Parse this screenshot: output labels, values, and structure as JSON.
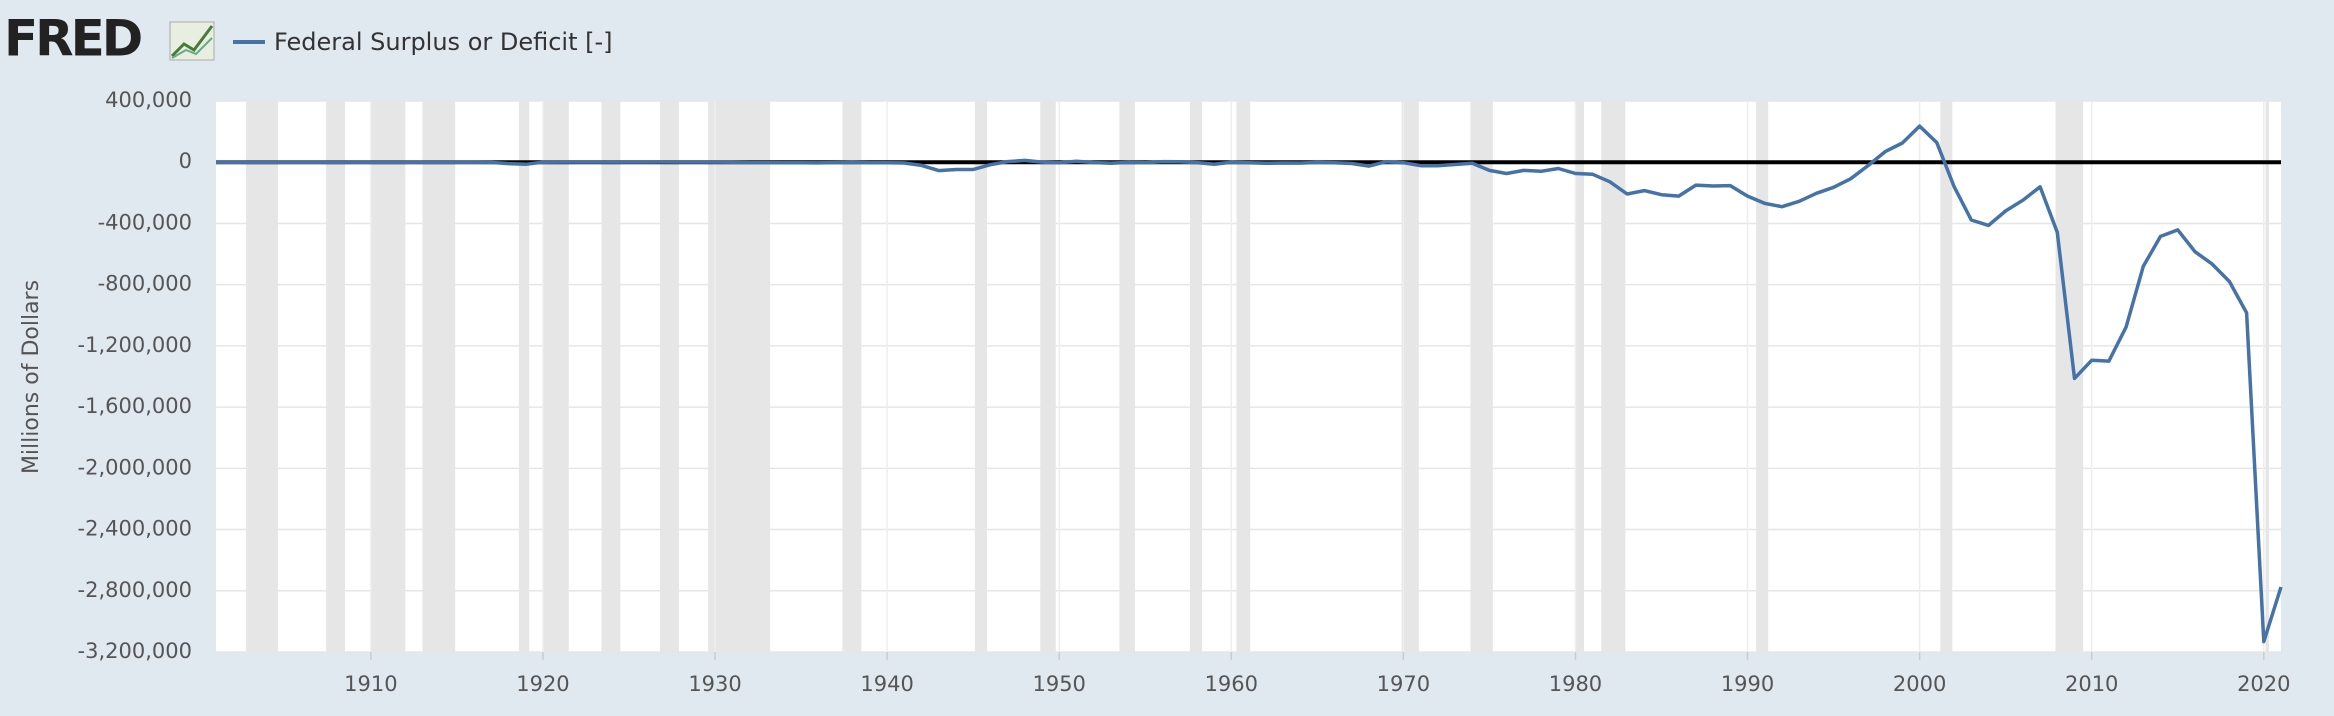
{
  "logo": "FRED",
  "chart_data": {
    "type": "line",
    "y_label": "Millions of Dollars",
    "x": [
      1901,
      1902,
      1903,
      1904,
      1905,
      1906,
      1907,
      1908,
      1909,
      1910,
      1911,
      1912,
      1913,
      1914,
      1915,
      1916,
      1917,
      1918,
      1919,
      1920,
      1921,
      1922,
      1923,
      1924,
      1925,
      1926,
      1927,
      1928,
      1929,
      1930,
      1931,
      1932,
      1933,
      1934,
      1935,
      1936,
      1937,
      1938,
      1939,
      1940,
      1941,
      1942,
      1943,
      1944,
      1945,
      1946,
      1947,
      1948,
      1949,
      1950,
      1951,
      1952,
      1953,
      1954,
      1955,
      1956,
      1957,
      1958,
      1959,
      1960,
      1961,
      1962,
      1963,
      1964,
      1965,
      1966,
      1967,
      1968,
      1969,
      1970,
      1971,
      1972,
      1973,
      1974,
      1975,
      1976,
      1977,
      1978,
      1979,
      1980,
      1981,
      1982,
      1983,
      1984,
      1985,
      1986,
      1987,
      1988,
      1989,
      1990,
      1991,
      1992,
      1993,
      1994,
      1995,
      1996,
      1997,
      1998,
      1999,
      2000,
      2001,
      2002,
      2003,
      2004,
      2005,
      2006,
      2007,
      2008,
      2009,
      2010,
      2011,
      2012,
      2013,
      2014,
      2015,
      2016,
      2017,
      2018,
      2019,
      2020,
      2021
    ],
    "series": [
      {
        "name": "Federal Surplus or Deficit [-]",
        "color": "#4572a7",
        "values": [
          63,
          77,
          45,
          -43,
          -23,
          25,
          87,
          -57,
          -89,
          -18,
          11,
          3,
          0,
          0,
          -63,
          48,
          -853,
          -9032,
          -13363,
          291,
          509,
          736,
          713,
          963,
          717,
          865,
          1155,
          939,
          734,
          738,
          -462,
          -2735,
          -2602,
          -3586,
          -2803,
          -4304,
          -2193,
          -89,
          -2846,
          -2920,
          -4941,
          -20503,
          -54554,
          -47557,
          -47553,
          -15936,
          4018,
          11796,
          580,
          -3119,
          6102,
          -1519,
          -6493,
          -1154,
          -2993,
          3947,
          3412,
          -2769,
          -12849,
          301,
          -3335,
          -7146,
          -4756,
          -5915,
          -1411,
          -3698,
          -8643,
          -25161,
          3242,
          -2842,
          -23033,
          -23373,
          -14908,
          -6135,
          -53242,
          -73732,
          -53659,
          -59185,
          -40726,
          -73830,
          -78968,
          -127977,
          -207802,
          -185367,
          -212308,
          -221227,
          -149730,
          -155178,
          -152639,
          -221036,
          -269238,
          -290321,
          -255051,
          -203186,
          -163952,
          -107431,
          -21884,
          69270,
          125610,
          236241,
          128236,
          -157758,
          -377585,
          -412727,
          -318346,
          -248181,
          -160701,
          -458553,
          -1412688,
          -1294373,
          -1299599,
          -1076573,
          -679775,
          -484602,
          -441960,
          -584651,
          -665446,
          -779137,
          -983592,
          -3131917,
          -2775299
        ]
      }
    ],
    "recessions": [
      [
        1902.75,
        1904.6
      ],
      [
        1907.4,
        1908.5
      ],
      [
        1910.0,
        1912.0
      ],
      [
        1913.0,
        1914.9
      ],
      [
        1918.6,
        1919.2
      ],
      [
        1920.0,
        1921.5
      ],
      [
        1923.4,
        1924.5
      ],
      [
        1926.8,
        1927.9
      ],
      [
        1929.6,
        1933.2
      ],
      [
        1937.4,
        1938.5
      ],
      [
        1945.1,
        1945.8
      ],
      [
        1948.9,
        1949.8
      ],
      [
        1953.5,
        1954.4
      ],
      [
        1957.6,
        1958.3
      ],
      [
        1960.3,
        1961.1
      ],
      [
        1969.9,
        1970.9
      ],
      [
        1973.9,
        1975.2
      ],
      [
        1980.0,
        1980.5
      ],
      [
        1981.5,
        1982.9
      ],
      [
        1990.5,
        1991.2
      ],
      [
        2001.2,
        2001.9
      ],
      [
        2007.9,
        2009.5
      ],
      [
        2020.1,
        2020.3
      ]
    ],
    "recession_color": "#e6e6e6",
    "xlim": [
      1901,
      2021
    ],
    "xticks": [
      1910,
      1920,
      1930,
      1940,
      1950,
      1960,
      1970,
      1980,
      1990,
      2000,
      2010,
      2020
    ],
    "ylim": [
      -3200000,
      400000
    ],
    "yticks": [
      {
        "value": -3200000,
        "label": "-3,200,000"
      },
      {
        "value": -2800000,
        "label": "-2,800,000"
      },
      {
        "value": -2400000,
        "label": "-2,400,000"
      },
      {
        "value": -2000000,
        "label": "-2,000,000"
      },
      {
        "value": -1600000,
        "label": "-1,600,000"
      },
      {
        "value": -1200000,
        "label": "-1,200,000"
      },
      {
        "value": -800000,
        "label": "-800,000"
      },
      {
        "value": -400000,
        "label": "-400,000"
      },
      0,
      {
        "value": 400000,
        "label": "400,000"
      }
    ],
    "grid": true,
    "legend": "top-left"
  }
}
